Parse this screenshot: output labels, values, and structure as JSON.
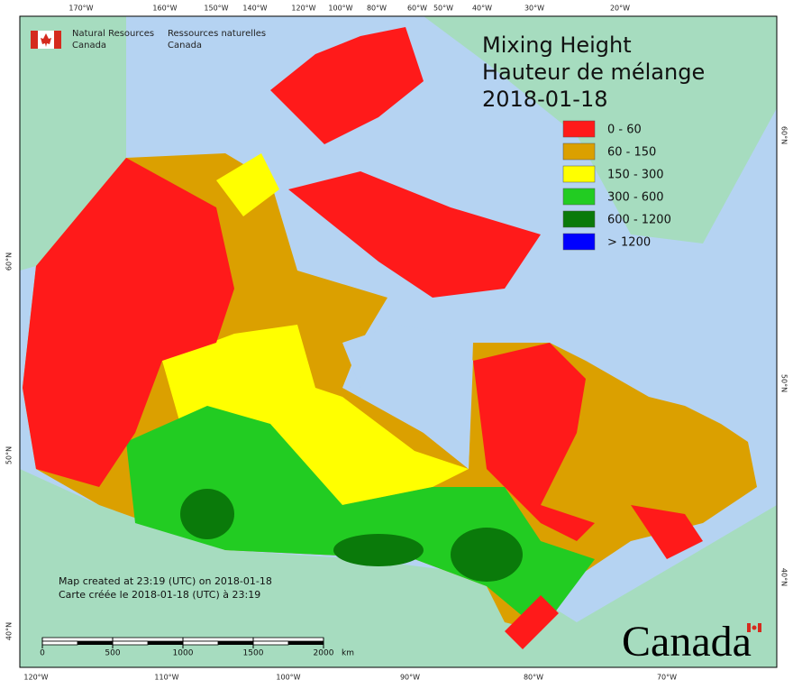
{
  "header": {
    "agency_en": [
      "Natural Resources",
      "Canada"
    ],
    "agency_fr": [
      "Ressources naturelles",
      "Canada"
    ]
  },
  "title": [
    "Mixing Height",
    "Hauteur de mélange",
    "2018-01-18"
  ],
  "legend": [
    {
      "label": "0 - 60",
      "color": "#ff1a1a"
    },
    {
      "label": "60 - 150",
      "color": "#dba000"
    },
    {
      "label": "150 - 300",
      "color": "#ffff00"
    },
    {
      "label": "300 - 600",
      "color": "#22cc22"
    },
    {
      "label": "600 - 1200",
      "color": "#0a7a0a"
    },
    {
      "label": "> 1200",
      "color": "#0000ff"
    }
  ],
  "graticule": {
    "top": [
      "170°W",
      "160°W",
      "150°W",
      "140°W",
      "120°W",
      "100°W",
      "80°W",
      "60°W",
      "50°W",
      "40°W",
      "30°W",
      "20°W"
    ],
    "bottom": [
      "120°W",
      "110°W",
      "100°W",
      "90°W",
      "80°W",
      "70°W"
    ],
    "left": [
      "60°N",
      "50°N",
      "40°N"
    ],
    "right": [
      "60°N",
      "50°N",
      "40°N"
    ]
  },
  "credits": [
    "Map created at 23:19 (UTC) on 2018-01-18",
    "Carte créée le 2018-01-18 (UTC) à 23:19"
  ],
  "scale_bar": {
    "ticks": [
      0,
      500,
      1000,
      1500,
      2000
    ],
    "unit": "km"
  },
  "wordmark": "Canada"
}
